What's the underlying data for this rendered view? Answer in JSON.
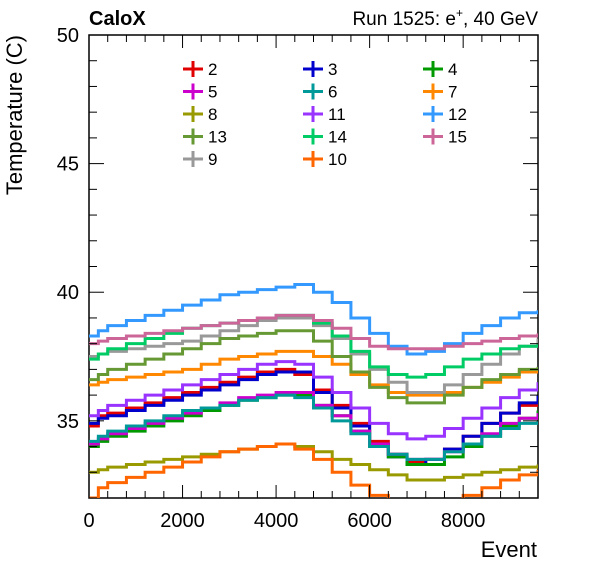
{
  "chart_data": {
    "type": "line",
    "title": "CaloX",
    "subtitle_parts": [
      "Run 1525: e",
      "+",
      ", 40 GeV"
    ],
    "xlabel": "Event",
    "ylabel": "Temperature (C)",
    "xlim": [
      0,
      9600
    ],
    "ylim": [
      32,
      50
    ],
    "xticks": [
      0,
      2000,
      4000,
      6000,
      8000
    ],
    "yticks": [
      35,
      40,
      45,
      50
    ],
    "x": [
      0,
      200,
      400,
      800,
      1200,
      1600,
      2000,
      2400,
      2800,
      3200,
      3600,
      4000,
      4400,
      4800,
      5200,
      5600,
      6000,
      6400,
      6800,
      7200,
      7600,
      8000,
      8400,
      8800,
      9200,
      9600
    ],
    "series": [
      {
        "name": "2",
        "color": "#e00000",
        "values": [
          34.8,
          35.2,
          35.3,
          35.5,
          35.7,
          35.9,
          36.1,
          36.3,
          36.5,
          36.7,
          36.9,
          37.0,
          36.8,
          36.2,
          35.6,
          34.9,
          34.2,
          33.7,
          33.4,
          33.5,
          33.9,
          34.4,
          34.9,
          35.3,
          35.6,
          35.9
        ]
      },
      {
        "name": "3",
        "color": "#0000cc",
        "values": [
          34.9,
          35.1,
          35.2,
          35.4,
          35.6,
          35.8,
          36.0,
          36.2,
          36.4,
          36.6,
          36.8,
          36.9,
          36.9,
          36.1,
          35.5,
          34.8,
          34.1,
          33.6,
          33.3,
          33.5,
          33.9,
          34.4,
          34.9,
          35.3,
          35.7,
          36.0
        ]
      },
      {
        "name": "4",
        "color": "#009900",
        "values": [
          34.0,
          34.2,
          34.4,
          34.6,
          34.8,
          35.0,
          35.2,
          35.4,
          35.6,
          35.8,
          35.9,
          36.0,
          36.0,
          35.6,
          35.2,
          34.6,
          34.0,
          33.6,
          33.3,
          33.3,
          33.6,
          34.0,
          34.4,
          34.8,
          35.1,
          35.4
        ]
      },
      {
        "name": "5",
        "color": "#cc00cc",
        "values": [
          34.1,
          34.3,
          34.5,
          34.7,
          34.9,
          35.1,
          35.3,
          35.5,
          35.7,
          35.9,
          36.0,
          36.1,
          36.1,
          35.6,
          35.2,
          34.6,
          34.1,
          33.7,
          33.5,
          33.5,
          33.8,
          34.1,
          34.5,
          34.9,
          35.1,
          35.3
        ]
      },
      {
        "name": "6",
        "color": "#009999",
        "values": [
          34.2,
          34.4,
          34.6,
          34.8,
          35.0,
          35.2,
          35.4,
          35.5,
          35.6,
          35.8,
          35.9,
          36.0,
          35.9,
          35.5,
          35.0,
          34.5,
          34.0,
          33.7,
          33.5,
          33.5,
          33.8,
          34.1,
          34.4,
          34.7,
          34.9,
          35.0
        ]
      },
      {
        "name": "7",
        "color": "#ff8800",
        "values": [
          36.4,
          36.5,
          36.6,
          36.7,
          36.8,
          36.9,
          37.0,
          37.2,
          37.4,
          37.5,
          37.6,
          37.7,
          37.7,
          37.5,
          37.2,
          36.8,
          36.4,
          36.1,
          36.0,
          36.0,
          36.1,
          36.3,
          36.5,
          36.7,
          36.9,
          37.0
        ]
      },
      {
        "name": "8",
        "color": "#999900",
        "values": [
          33.0,
          33.1,
          33.2,
          33.3,
          33.4,
          33.5,
          33.6,
          33.7,
          33.8,
          33.9,
          34.0,
          34.1,
          34.0,
          33.8,
          33.5,
          33.3,
          33.1,
          32.9,
          32.7,
          32.7,
          32.8,
          32.9,
          33.0,
          33.1,
          33.2,
          33.3
        ]
      },
      {
        "name": "9",
        "color": "#999999",
        "values": [
          37.5,
          37.6,
          37.7,
          37.8,
          37.9,
          38.0,
          38.1,
          38.3,
          38.5,
          38.7,
          38.9,
          39.0,
          39.0,
          38.7,
          38.2,
          37.6,
          37.0,
          36.5,
          36.1,
          36.1,
          36.4,
          36.8,
          37.2,
          37.6,
          37.9,
          38.2
        ]
      },
      {
        "name": "10",
        "color": "#ff6600",
        "values": [
          32.0,
          32.4,
          32.6,
          32.8,
          33.0,
          33.2,
          33.4,
          33.6,
          33.8,
          33.9,
          34.0,
          34.1,
          33.9,
          33.5,
          33.0,
          32.5,
          32.1,
          31.8,
          31.6,
          31.6,
          31.8,
          32.1,
          32.4,
          32.7,
          32.9,
          33.1
        ]
      },
      {
        "name": "11",
        "color": "#9933ff",
        "values": [
          35.2,
          35.4,
          35.6,
          35.8,
          36.0,
          36.2,
          36.4,
          36.6,
          36.8,
          37.0,
          37.2,
          37.3,
          37.2,
          36.7,
          36.1,
          35.5,
          34.9,
          34.5,
          34.3,
          34.4,
          34.7,
          35.1,
          35.5,
          35.9,
          36.2,
          36.5
        ]
      },
      {
        "name": "12",
        "color": "#3399ff",
        "values": [
          38.3,
          38.5,
          38.7,
          38.9,
          39.1,
          39.3,
          39.5,
          39.7,
          39.9,
          40.0,
          40.1,
          40.2,
          40.3,
          40.0,
          39.6,
          39.0,
          38.4,
          37.9,
          37.6,
          37.7,
          38.0,
          38.4,
          38.7,
          39.0,
          39.2,
          39.3
        ]
      },
      {
        "name": "13",
        "color": "#669933",
        "values": [
          36.6,
          36.8,
          37.0,
          37.2,
          37.4,
          37.6,
          37.8,
          38.0,
          38.2,
          38.3,
          38.4,
          38.5,
          38.5,
          38.1,
          37.5,
          36.9,
          36.3,
          35.9,
          35.7,
          35.7,
          36.0,
          36.3,
          36.6,
          36.8,
          37.0,
          37.1
        ]
      },
      {
        "name": "14",
        "color": "#00cc66",
        "values": [
          37.4,
          37.6,
          37.8,
          38.0,
          38.2,
          38.4,
          38.6,
          38.7,
          38.8,
          38.9,
          39.0,
          39.1,
          39.1,
          38.8,
          38.3,
          37.7,
          37.1,
          36.8,
          36.7,
          36.8,
          37.1,
          37.4,
          37.6,
          37.8,
          37.9,
          38.0
        ]
      },
      {
        "name": "15",
        "color": "#cc6699",
        "values": [
          38.0,
          38.1,
          38.2,
          38.3,
          38.4,
          38.5,
          38.6,
          38.7,
          38.8,
          38.9,
          39.0,
          39.1,
          39.1,
          38.9,
          38.6,
          38.2,
          37.9,
          37.8,
          37.8,
          37.8,
          37.9,
          38.0,
          38.1,
          38.2,
          38.3,
          38.4
        ]
      }
    ],
    "legend_order": [
      "2",
      "3",
      "4",
      "5",
      "6",
      "7",
      "8",
      "11",
      "12",
      "13",
      "14",
      "15",
      "9",
      "10"
    ],
    "grid": false,
    "legend_position": "top"
  }
}
